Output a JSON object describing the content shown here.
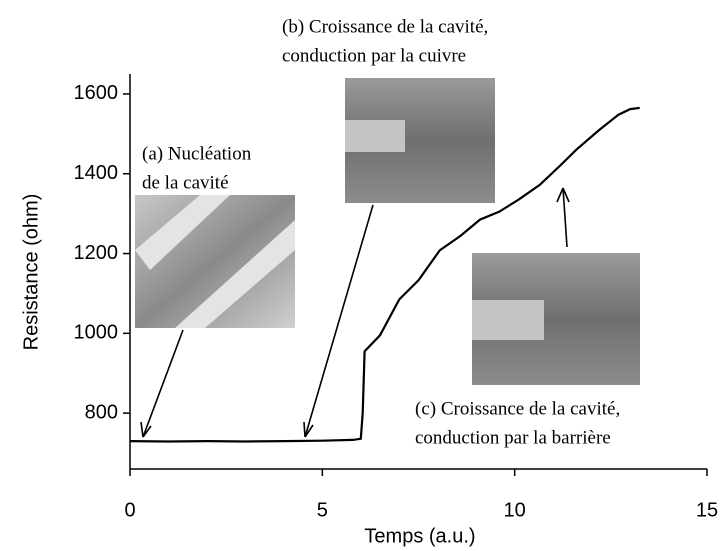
{
  "chart_data": {
    "type": "line",
    "x_label": "Temps (a.u.)",
    "y_label": "Resistance (ohm)",
    "xlim": [
      0,
      15
    ],
    "xticks": [
      0,
      5,
      10,
      15
    ],
    "ylim": [
      660,
      1650
    ],
    "yticks": [
      800,
      1000,
      1200,
      1400,
      1600
    ],
    "series": [
      {
        "color": "#000000",
        "x": [
          0,
          1,
          2,
          3,
          4,
          5,
          5.8,
          6.0,
          6.05,
          6.1,
          6.5,
          7.0,
          7.5,
          8.05,
          8.6,
          9.1,
          9.6,
          10.1,
          10.65,
          11.2,
          11.6,
          12.2,
          12.7,
          13.0,
          13.25
        ],
        "values": [
          730,
          729,
          730,
          729,
          730,
          731,
          733,
          736,
          800,
          955,
          995,
          1085,
          1133,
          1208,
          1245,
          1285,
          1305,
          1335,
          1372,
          1422,
          1460,
          1510,
          1548,
          1562,
          1565
        ]
      }
    ],
    "annotations": [
      {
        "lines": [
          "(a) Nucléation",
          "de la cavité"
        ]
      },
      {
        "lines": [
          "(b) Croissance de la cavité,",
          "conduction par la cuivre"
        ]
      },
      {
        "lines": [
          "(c) Croissance de la cavité,",
          "conduction par la barrière"
        ]
      }
    ]
  }
}
